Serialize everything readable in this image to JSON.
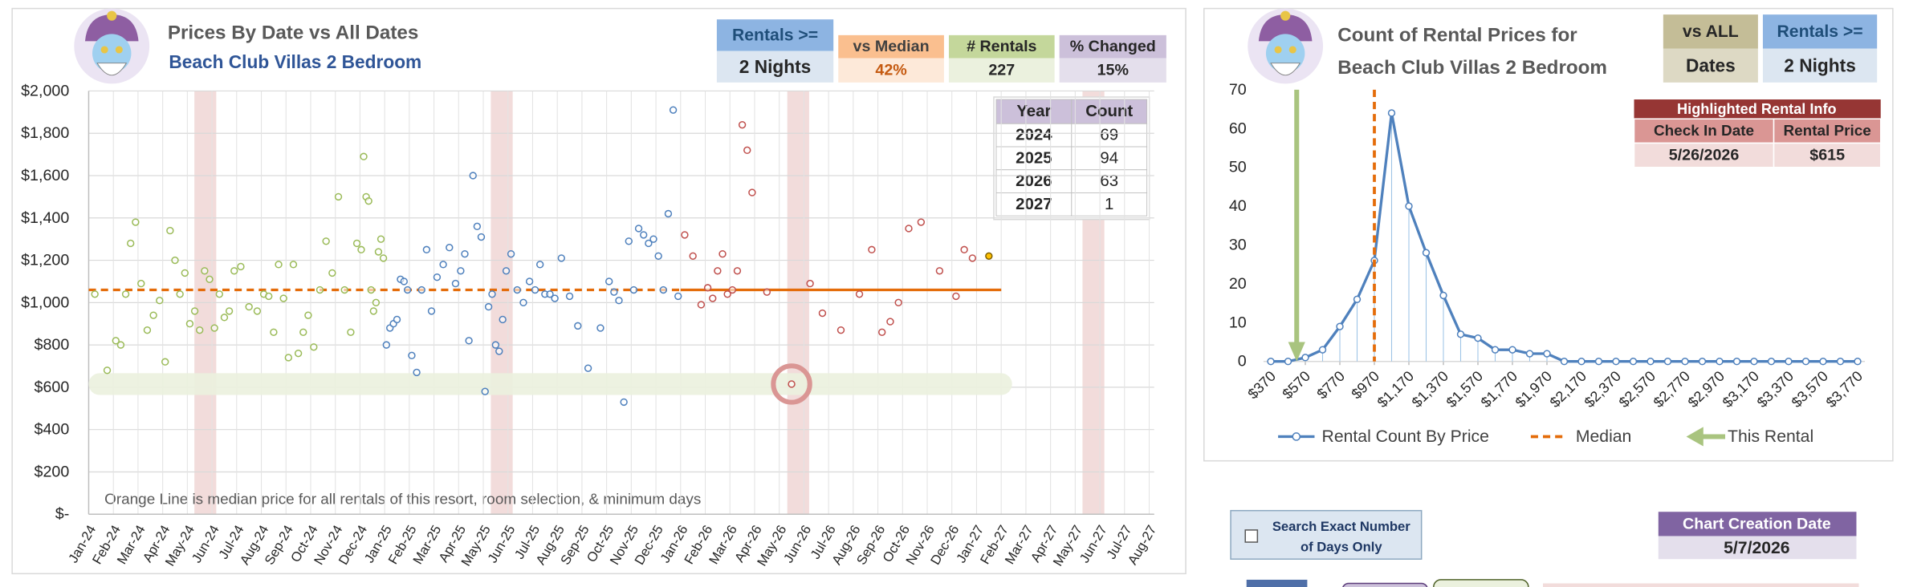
{
  "chart_data": [
    {
      "type": "scatter",
      "title": "Prices By Date vs All Dates",
      "subtitle": "Beach Club Villas 2 Bedroom",
      "categories": [
        "Jan-24",
        "Feb-24",
        "Mar-24",
        "Apr-24",
        "May-24",
        "Jun-24",
        "Jul-24",
        "Aug-24",
        "Sep-24",
        "Oct-24",
        "Nov-24",
        "Dec-24",
        "Jan-25",
        "Feb-25",
        "Mar-25",
        "Apr-25",
        "May-25",
        "Jun-25",
        "Jul-25",
        "Aug-25",
        "Sep-25",
        "Oct-25",
        "Nov-25",
        "Dec-25",
        "Jan-26",
        "Feb-26",
        "Mar-26",
        "Apr-26",
        "May-26",
        "Jun-26",
        "Jul-26",
        "Aug-26",
        "Sep-26",
        "Oct-26",
        "Nov-26",
        "Dec-26",
        "Jan-27",
        "Feb-27",
        "Mar-27",
        "Apr-27",
        "May-27",
        "Jun-27",
        "Jul-27",
        "Aug-27"
      ],
      "ylim": [
        0,
        2000
      ],
      "yticks": [
        {
          "value": 0,
          "label": "$-"
        },
        {
          "value": 200,
          "label": "$200"
        },
        {
          "value": 400,
          "label": "$400"
        },
        {
          "value": 600,
          "label": "$600"
        },
        {
          "value": 800,
          "label": "$800"
        },
        {
          "value": 1000,
          "label": "$1,000"
        },
        {
          "value": 1200,
          "label": "$1,200"
        },
        {
          "value": 1400,
          "label": "$1,400"
        },
        {
          "value": 1600,
          "label": "$1,600"
        },
        {
          "value": 1800,
          "label": "$1,800"
        },
        {
          "value": 2000,
          "label": "$2,000"
        }
      ],
      "grid": true,
      "median": 1060,
      "median_color": "#e46c0a",
      "this_rental": {
        "x": "May-26",
        "y": 615
      },
      "annotation": "Orange Line is median price for all rentals of this resort, room selection, & minimum days",
      "series": [
        {
          "color": "#9bbb59",
          "filled": false,
          "x": [
            "Jan-24",
            "Jan-24",
            "Feb-24",
            "Feb-24",
            "Feb-24",
            "Feb-24",
            "Feb-24",
            "Mar-24",
            "Mar-24",
            "Mar-24",
            "Mar-24",
            "Apr-24",
            "Apr-24",
            "Apr-24",
            "Apr-24",
            "Apr-24",
            "May-24",
            "May-24",
            "May-24",
            "May-24",
            "May-24",
            "Jun-24",
            "Jun-24",
            "Jun-24",
            "Jun-24",
            "Jun-24",
            "Jul-24",
            "Jul-24",
            "Jul-24",
            "Aug-24",
            "Aug-24",
            "Aug-24",
            "Aug-24",
            "Aug-24",
            "Sep-24",
            "Sep-24",
            "Sep-24",
            "Sep-24",
            "Sep-24",
            "Oct-24",
            "Oct-24",
            "Oct-24",
            "Oct-24",
            "Nov-24",
            "Nov-24",
            "Nov-24",
            "Nov-24",
            "Dec-24",
            "Dec-24",
            "Dec-24",
            "Dec-24",
            "Dec-24",
            "Dec-24",
            "Dec-24",
            "Dec-24",
            "Dec-24",
            "Dec-24"
          ],
          "y": [
            1040,
            680,
            820,
            800,
            1040,
            1280,
            1380,
            1090,
            870,
            940,
            1010,
            720,
            1340,
            1200,
            1040,
            1140,
            900,
            960,
            870,
            1150,
            1110,
            880,
            1040,
            930,
            960,
            1150,
            1170,
            980,
            960,
            1040,
            1030,
            860,
            1180,
            1020,
            740,
            1180,
            760,
            860,
            940,
            790,
            1060,
            1290,
            1140,
            1500,
            1060,
            860,
            1280,
            1250,
            1690,
            1500,
            1480,
            1060,
            960,
            1000,
            1240,
            1300,
            1210
          ]
        },
        {
          "color": "#4f81bd",
          "filled": false,
          "x": [
            "Jan-25",
            "Jan-25",
            "Jan-25",
            "Jan-25",
            "Jan-25",
            "Jan-25",
            "Jan-25",
            "Feb-25",
            "Feb-25",
            "Feb-25",
            "Feb-25",
            "Feb-25",
            "Mar-25",
            "Mar-25",
            "Mar-25",
            "Mar-25",
            "Apr-25",
            "Apr-25",
            "Apr-25",
            "Apr-25",
            "Apr-25",
            "Apr-25",
            "May-25",
            "May-25",
            "May-25",
            "May-25",
            "May-25",
            "May-25",
            "May-25",
            "Jun-25",
            "Jun-25",
            "Jun-25",
            "Jun-25",
            "Jul-25",
            "Jul-25",
            "Jul-25",
            "Jul-25",
            "Jul-25",
            "Aug-25",
            "Aug-25",
            "Aug-25",
            "Sep-25",
            "Sep-25",
            "Oct-25",
            "Oct-25",
            "Oct-25",
            "Oct-25",
            "Oct-25",
            "Nov-25",
            "Nov-25",
            "Nov-25",
            "Nov-25",
            "Nov-25",
            "Dec-25",
            "Dec-25",
            "Dec-25",
            "Dec-25",
            "Dec-25"
          ],
          "y": [
            800,
            880,
            900,
            920,
            1110,
            1100,
            1060,
            750,
            670,
            1060,
            1250,
            960,
            1120,
            1180,
            1260,
            1090,
            1150,
            1230,
            820,
            1600,
            1360,
            1310,
            580,
            980,
            1040,
            800,
            770,
            920,
            1150,
            1230,
            1060,
            1000,
            1100,
            1060,
            1180,
            1040,
            1040,
            1020,
            1210,
            1030,
            890,
            690,
            880,
            1100,
            1050,
            1010,
            530,
            1290,
            1060,
            1350,
            1320,
            1280,
            1300,
            1220,
            1060,
            1420,
            1910,
            1030
          ]
        },
        {
          "color": "#c0504d",
          "filled": false,
          "x": [
            "Jan-26",
            "Jan-26",
            "Jan-26",
            "Feb-26",
            "Feb-26",
            "Feb-26",
            "Feb-26",
            "Feb-26",
            "Mar-26",
            "Mar-26",
            "Mar-26",
            "Mar-26",
            "Mar-26",
            "Apr-26",
            "May-26",
            "Jun-26",
            "Jun-26",
            "Jul-26",
            "Aug-26",
            "Aug-26",
            "Sep-26",
            "Sep-26",
            "Sep-26",
            "Oct-26",
            "Oct-26",
            "Nov-26",
            "Dec-26",
            "Dec-26",
            "Dec-26"
          ],
          "y": [
            1320,
            1220,
            990,
            1070,
            1020,
            1150,
            1230,
            1040,
            1060,
            1150,
            1840,
            1720,
            1520,
            1050,
            615,
            1090,
            950,
            870,
            1040,
            1250,
            860,
            910,
            1000,
            1350,
            1380,
            1150,
            1030,
            1250,
            1210
          ]
        },
        {
          "color": "#ffc000",
          "filled": true,
          "x": [
            "Jan-27"
          ],
          "y": [
            1220
          ]
        }
      ]
    },
    {
      "type": "line",
      "title": "Count of Rental Prices for",
      "subtitle": "Beach Club Villas 2 Bedroom",
      "x": [
        370,
        470,
        570,
        670,
        770,
        870,
        970,
        1070,
        1170,
        1270,
        1370,
        1470,
        1570,
        1670,
        1770,
        1870,
        1970,
        2070,
        2170,
        2270,
        2370,
        2470,
        2570,
        2670,
        2770,
        2870,
        2970,
        3070,
        3170,
        3270,
        3370,
        3470,
        3570,
        3670,
        3770
      ],
      "xlim": [
        370,
        3770
      ],
      "xticks": [
        {
          "value": 370,
          "label": "$370"
        },
        {
          "value": 570,
          "label": "$570"
        },
        {
          "value": 770,
          "label": "$770"
        },
        {
          "value": 970,
          "label": "$970"
        },
        {
          "value": 1170,
          "label": "$1,170"
        },
        {
          "value": 1370,
          "label": "$1,370"
        },
        {
          "value": 1570,
          "label": "$1,570"
        },
        {
          "value": 1770,
          "label": "$1,770"
        },
        {
          "value": 1970,
          "label": "$1,970"
        },
        {
          "value": 2170,
          "label": "$2,170"
        },
        {
          "value": 2370,
          "label": "$2,370"
        },
        {
          "value": 2570,
          "label": "$2,570"
        },
        {
          "value": 2770,
          "label": "$2,770"
        },
        {
          "value": 2970,
          "label": "$2,970"
        },
        {
          "value": 3170,
          "label": "$3,170"
        },
        {
          "value": 3370,
          "label": "$3,370"
        },
        {
          "value": 3570,
          "label": "$3,570"
        },
        {
          "value": 3770,
          "label": "$3,770"
        }
      ],
      "ylim": [
        0,
        70
      ],
      "yticks": [
        0,
        10,
        20,
        30,
        40,
        50,
        60,
        70
      ],
      "series": [
        {
          "name": "Rental Count By Price",
          "color": "#4f81bd",
          "values": [
            0,
            0,
            1,
            3,
            9,
            16,
            26,
            64,
            40,
            28,
            17,
            7,
            6,
            3,
            3,
            2,
            2,
            0,
            0,
            0,
            0,
            0,
            0,
            0,
            0,
            0,
            0,
            0,
            0,
            0,
            0,
            0,
            0,
            0,
            0
          ]
        }
      ],
      "markers": [
        {
          "name": "Median",
          "x": 970,
          "color": "#e46c0a"
        },
        {
          "name": "This Rental",
          "x": 520,
          "color": "#a9c47f"
        }
      ]
    }
  ],
  "panel1_boxes": [
    {
      "label": "Rentals >=",
      "value": "2 Nights"
    },
    {
      "label": "vs Median",
      "value": "42%"
    },
    {
      "label": "# Rentals",
      "value": "227"
    },
    {
      "label": "% Changed",
      "value": "15%"
    }
  ],
  "year_table": {
    "header": [
      "Year",
      "Count"
    ],
    "rows": [
      [
        "2024",
        "69"
      ],
      [
        "2025",
        "94"
      ],
      [
        "2026",
        "63"
      ],
      [
        "2027",
        "1"
      ]
    ]
  },
  "panel2_boxes": [
    {
      "label": "vs ALL",
      "value": "Dates"
    },
    {
      "label": "Rentals >=",
      "value": "2 Nights"
    }
  ],
  "highlight_table": {
    "title": "Highlighted Rental Info",
    "header": [
      "Check In Date",
      "Rental Price"
    ],
    "row": [
      "5/26/2026",
      "$615"
    ]
  },
  "checkbox": {
    "lines": [
      "Search Exact Number",
      "of Days Only"
    ]
  },
  "creation_date": {
    "label": "Chart Creation Date",
    "value": "5/7/2026"
  }
}
